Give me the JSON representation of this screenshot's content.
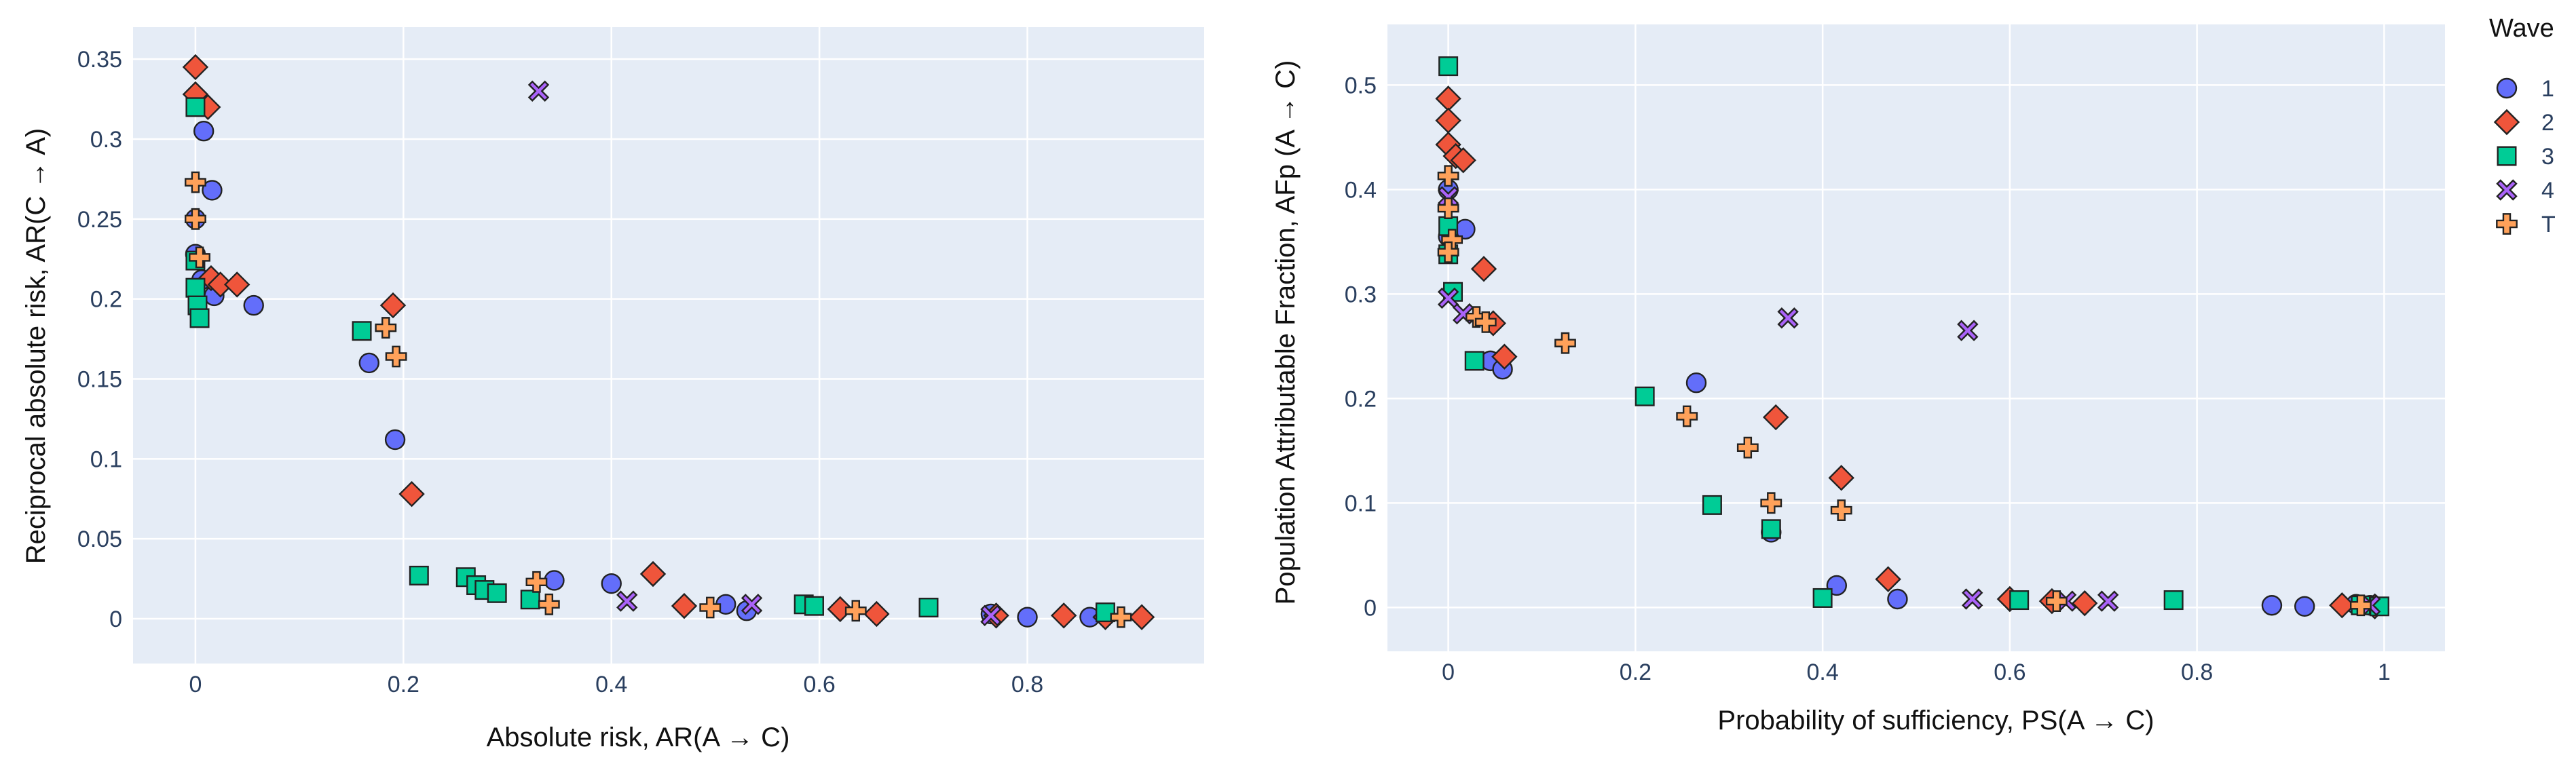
{
  "legend": {
    "title": "Wave",
    "entries": [
      {
        "key": "1",
        "label": "1",
        "symbol": "circle",
        "color": "#636efa"
      },
      {
        "key": "2",
        "label": "2",
        "symbol": "diamond",
        "color": "#ef553b"
      },
      {
        "key": "3",
        "label": "3",
        "symbol": "square",
        "color": "#00cc96"
      },
      {
        "key": "4",
        "label": "4",
        "symbol": "x",
        "color": "#ab63fa"
      },
      {
        "key": "T",
        "label": "T",
        "symbol": "cross",
        "color": "#ffa15a"
      }
    ]
  },
  "chart_data": [
    {
      "type": "scatter",
      "xlabel": "Absolute risk,  AR(A → C)",
      "ylabel": "Reciprocal absolute risk,  AR(C → A)",
      "xlim": [
        -0.06,
        0.97
      ],
      "ylim": [
        -0.028,
        0.37
      ],
      "xticks": [
        {
          "v": 0,
          "label": "0"
        },
        {
          "v": 0.2,
          "label": "0.2"
        },
        {
          "v": 0.4,
          "label": "0.4"
        },
        {
          "v": 0.6,
          "label": "0.6"
        },
        {
          "v": 0.8,
          "label": "0.8"
        }
      ],
      "yticks": [
        {
          "v": 0,
          "label": "0"
        },
        {
          "v": 0.05,
          "label": "0.05"
        },
        {
          "v": 0.1,
          "label": "0.1"
        },
        {
          "v": 0.15,
          "label": "0.15"
        },
        {
          "v": 0.2,
          "label": "0.2"
        },
        {
          "v": 0.25,
          "label": "0.25"
        },
        {
          "v": 0.3,
          "label": "0.3"
        },
        {
          "v": 0.35,
          "label": "0.35"
        }
      ],
      "series": [
        {
          "name": "1",
          "points": [
            [
              0.008,
              0.305
            ],
            [
              0.016,
              0.268
            ],
            [
              0.0,
              0.25
            ],
            [
              0.0,
              0.228
            ],
            [
              0.006,
              0.212
            ],
            [
              0.018,
              0.202
            ],
            [
              0.056,
              0.196
            ],
            [
              0.167,
              0.16
            ],
            [
              0.192,
              0.112
            ],
            [
              0.345,
              0.024
            ],
            [
              0.4,
              0.022
            ],
            [
              0.51,
              0.009
            ],
            [
              0.53,
              0.005
            ],
            [
              0.765,
              0.003
            ],
            [
              0.8,
              0.001
            ],
            [
              0.86,
              0.001
            ]
          ]
        },
        {
          "name": "2",
          "points": [
            [
              0.0,
              0.345
            ],
            [
              0.0,
              0.328
            ],
            [
              0.012,
              0.32
            ],
            [
              0.015,
              0.213
            ],
            [
              0.024,
              0.209
            ],
            [
              0.04,
              0.209
            ],
            [
              0.19,
              0.196
            ],
            [
              0.208,
              0.078
            ],
            [
              0.44,
              0.028
            ],
            [
              0.47,
              0.008
            ],
            [
              0.62,
              0.006
            ],
            [
              0.655,
              0.003
            ],
            [
              0.77,
              0.002
            ],
            [
              0.835,
              0.002
            ],
            [
              0.875,
              0.001
            ],
            [
              0.91,
              0.001
            ]
          ]
        },
        {
          "name": "3",
          "points": [
            [
              0.0,
              0.32
            ],
            [
              0.0,
              0.224
            ],
            [
              0.0,
              0.207
            ],
            [
              0.002,
              0.196
            ],
            [
              0.004,
              0.188
            ],
            [
              0.16,
              0.18
            ],
            [
              0.215,
              0.027
            ],
            [
              0.26,
              0.026
            ],
            [
              0.27,
              0.021
            ],
            [
              0.278,
              0.018
            ],
            [
              0.29,
              0.016
            ],
            [
              0.322,
              0.012
            ],
            [
              0.585,
              0.009
            ],
            [
              0.595,
              0.008
            ],
            [
              0.705,
              0.007
            ],
            [
              0.875,
              0.004
            ]
          ]
        },
        {
          "name": "4",
          "points": [
            [
              0.33,
              0.33
            ],
            [
              0.415,
              0.011
            ],
            [
              0.535,
              0.009
            ],
            [
              0.765,
              0.002
            ]
          ]
        },
        {
          "name": "T",
          "points": [
            [
              0.0,
              0.273
            ],
            [
              0.0,
              0.25
            ],
            [
              0.004,
              0.226
            ],
            [
              0.183,
              0.182
            ],
            [
              0.193,
              0.164
            ],
            [
              0.328,
              0.023
            ],
            [
              0.34,
              0.009
            ],
            [
              0.495,
              0.007
            ],
            [
              0.635,
              0.005
            ],
            [
              0.89,
              0.001
            ]
          ]
        }
      ]
    },
    {
      "type": "scatter",
      "xlabel": "Probability of sufficiency, PS(A → C)",
      "ylabel": "Population Attributable Fraction,  AFp (A → C)",
      "xlim": [
        -0.065,
        1.065
      ],
      "ylim": [
        -0.042,
        0.558
      ],
      "xticks": [
        {
          "v": 0,
          "label": "0"
        },
        {
          "v": 0.2,
          "label": "0.2"
        },
        {
          "v": 0.4,
          "label": "0.4"
        },
        {
          "v": 0.6,
          "label": "0.6"
        },
        {
          "v": 0.8,
          "label": "0.8"
        },
        {
          "v": 1,
          "label": "1"
        }
      ],
      "yticks": [
        {
          "v": 0,
          "label": "0"
        },
        {
          "v": 0.1,
          "label": "0.1"
        },
        {
          "v": 0.2,
          "label": "0.2"
        },
        {
          "v": 0.3,
          "label": "0.3"
        },
        {
          "v": 0.4,
          "label": "0.4"
        },
        {
          "v": 0.5,
          "label": "0.5"
        }
      ],
      "series": [
        {
          "name": "1",
          "points": [
            [
              0.0,
              0.4
            ],
            [
              0.018,
              0.362
            ],
            [
              0.0,
              0.355
            ],
            [
              0.0,
              0.34
            ],
            [
              0.045,
              0.236
            ],
            [
              0.058,
              0.228
            ],
            [
              0.265,
              0.215
            ],
            [
              0.345,
              0.072
            ],
            [
              0.415,
              0.021
            ],
            [
              0.48,
              0.008
            ],
            [
              0.88,
              0.002
            ],
            [
              0.915,
              0.001
            ],
            [
              0.97,
              0.003
            ],
            [
              0.985,
              0.002
            ]
          ]
        },
        {
          "name": "2",
          "points": [
            [
              0.0,
              0.487
            ],
            [
              0.0,
              0.466
            ],
            [
              0.0,
              0.443
            ],
            [
              0.008,
              0.432
            ],
            [
              0.016,
              0.428
            ],
            [
              0.038,
              0.324
            ],
            [
              0.048,
              0.272
            ],
            [
              0.06,
              0.24
            ],
            [
              0.35,
              0.182
            ],
            [
              0.42,
              0.124
            ],
            [
              0.47,
              0.027
            ],
            [
              0.6,
              0.008
            ],
            [
              0.645,
              0.006
            ],
            [
              0.68,
              0.004
            ],
            [
              0.955,
              0.002
            ],
            [
              0.99,
              0.001
            ]
          ]
        },
        {
          "name": "3",
          "points": [
            [
              0.0,
              0.518
            ],
            [
              0.0,
              0.365
            ],
            [
              0.0,
              0.338
            ],
            [
              0.005,
              0.302
            ],
            [
              0.028,
              0.236
            ],
            [
              0.21,
              0.202
            ],
            [
              0.282,
              0.098
            ],
            [
              0.345,
              0.075
            ],
            [
              0.4,
              0.009
            ],
            [
              0.61,
              0.007
            ],
            [
              0.775,
              0.007
            ],
            [
              0.975,
              0.002
            ],
            [
              0.995,
              0.001
            ]
          ]
        },
        {
          "name": "4",
          "points": [
            [
              0.0,
              0.393
            ],
            [
              0.0,
              0.296
            ],
            [
              0.016,
              0.281
            ],
            [
              0.363,
              0.277
            ],
            [
              0.555,
              0.265
            ],
            [
              0.56,
              0.008
            ],
            [
              0.66,
              0.006
            ],
            [
              0.705,
              0.006
            ],
            [
              0.985,
              0.002
            ]
          ]
        },
        {
          "name": "T",
          "points": [
            [
              0.0,
              0.413
            ],
            [
              0.0,
              0.382
            ],
            [
              0.004,
              0.352
            ],
            [
              0.0,
              0.34
            ],
            [
              0.03,
              0.278
            ],
            [
              0.04,
              0.273
            ],
            [
              0.125,
              0.253
            ],
            [
              0.255,
              0.183
            ],
            [
              0.32,
              0.153
            ],
            [
              0.345,
              0.1
            ],
            [
              0.42,
              0.093
            ],
            [
              0.65,
              0.006
            ],
            [
              0.975,
              0.002
            ]
          ]
        }
      ]
    }
  ]
}
